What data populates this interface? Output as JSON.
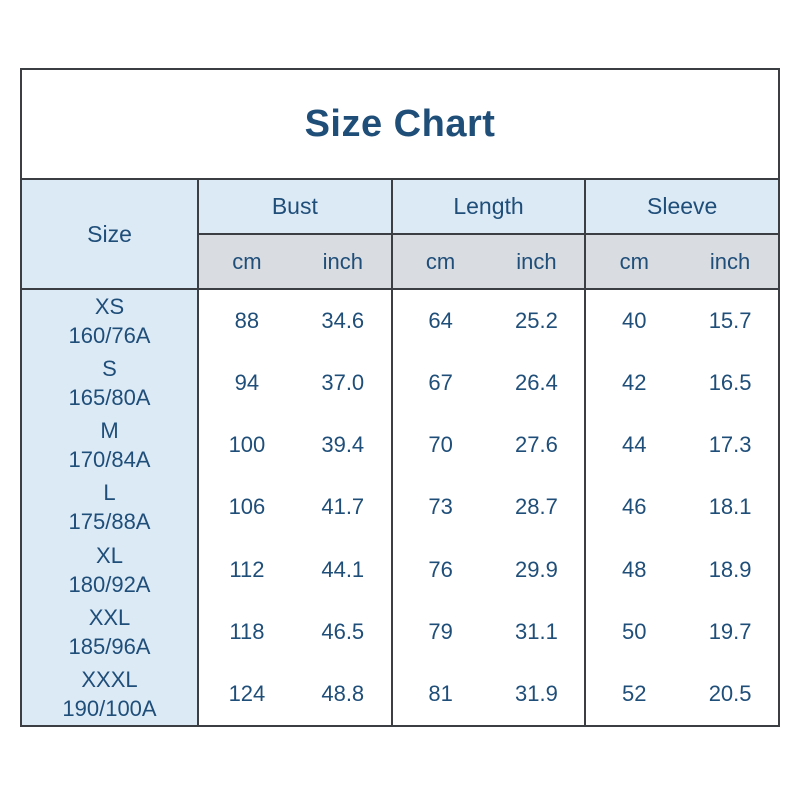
{
  "title": "Size Chart",
  "header": {
    "size_label": "Size",
    "groups": [
      {
        "label": "Bust",
        "units": [
          "cm",
          "inch"
        ]
      },
      {
        "label": "Length",
        "units": [
          "cm",
          "inch"
        ]
      },
      {
        "label": "Sleeve",
        "units": [
          "cm",
          "inch"
        ]
      }
    ]
  },
  "rows": [
    {
      "size": "XS",
      "spec": "160/76A",
      "bust": [
        "88",
        "34.6"
      ],
      "length": [
        "64",
        "25.2"
      ],
      "sleeve": [
        "40",
        "15.7"
      ]
    },
    {
      "size": "S",
      "spec": "165/80A",
      "bust": [
        "94",
        "37.0"
      ],
      "length": [
        "67",
        "26.4"
      ],
      "sleeve": [
        "42",
        "16.5"
      ]
    },
    {
      "size": "M",
      "spec": "170/84A",
      "bust": [
        "100",
        "39.4"
      ],
      "length": [
        "70",
        "27.6"
      ],
      "sleeve": [
        "44",
        "17.3"
      ]
    },
    {
      "size": "L",
      "spec": "175/88A",
      "bust": [
        "106",
        "41.7"
      ],
      "length": [
        "73",
        "28.7"
      ],
      "sleeve": [
        "46",
        "18.1"
      ]
    },
    {
      "size": "XL",
      "spec": "180/92A",
      "bust": [
        "112",
        "44.1"
      ],
      "length": [
        "76",
        "29.9"
      ],
      "sleeve": [
        "48",
        "18.9"
      ]
    },
    {
      "size": "XXL",
      "spec": "185/96A",
      "bust": [
        "118",
        "46.5"
      ],
      "length": [
        "79",
        "31.1"
      ],
      "sleeve": [
        "50",
        "19.7"
      ]
    },
    {
      "size": "XXXL",
      "spec": "190/100A",
      "bust": [
        "124",
        "48.8"
      ],
      "length": [
        "81",
        "31.9"
      ],
      "sleeve": [
        "52",
        "20.5"
      ]
    }
  ],
  "colors": {
    "title_text": "#1f4e79",
    "cell_text": "#1f4e79",
    "header_bg": "#dceaf6",
    "unit_row_bg": "#d9dce1",
    "data_bg": "#ffffff",
    "border": "#3b3e43"
  },
  "chart_data": {
    "type": "table",
    "title": "Size Chart",
    "columns": [
      "Size",
      "Bust cm",
      "Bust inch",
      "Length cm",
      "Length inch",
      "Sleeve cm",
      "Sleeve inch"
    ],
    "rows": [
      [
        "XS 160/76A",
        88,
        34.6,
        64,
        25.2,
        40,
        15.7
      ],
      [
        "S 165/80A",
        94,
        37.0,
        67,
        26.4,
        42,
        16.5
      ],
      [
        "M 170/84A",
        100,
        39.4,
        70,
        27.6,
        44,
        17.3
      ],
      [
        "L 175/88A",
        106,
        41.7,
        73,
        28.7,
        46,
        18.1
      ],
      [
        "XL 180/92A",
        112,
        44.1,
        76,
        29.9,
        48,
        18.9
      ],
      [
        "XXL 185/96A",
        118,
        46.5,
        79,
        31.1,
        50,
        19.7
      ],
      [
        "XXXL 190/100A",
        124,
        48.8,
        81,
        31.9,
        52,
        20.5
      ]
    ]
  }
}
